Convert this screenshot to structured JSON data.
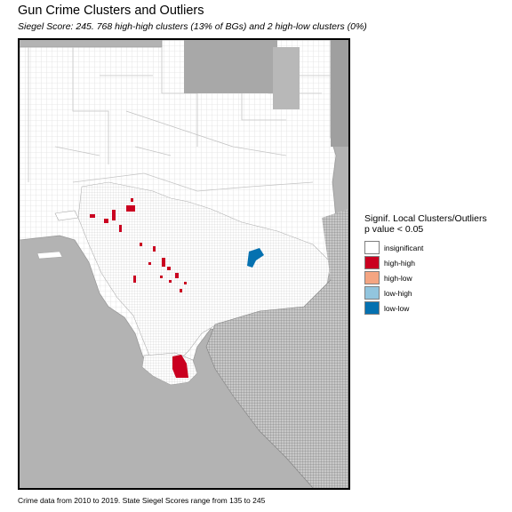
{
  "title": "Gun Crime Clusters and Outliers",
  "subtitle": "Siegel Score: 245. 768 high-high clusters (13% of BGs) and 2 high-low clusters (0%)",
  "legend": {
    "title_line1": "Signif. Local Clusters/Outliers",
    "title_line2": "p value < 0.05",
    "items": [
      {
        "label": "insignificant",
        "color": "#ffffff"
      },
      {
        "label": "high-high",
        "color": "#ca0020"
      },
      {
        "label": "high-low",
        "color": "#f4a582"
      },
      {
        "label": "low-high",
        "color": "#92c5de"
      },
      {
        "label": "low-low",
        "color": "#0571b0"
      }
    ]
  },
  "caption": "Crime data from 2010 to 2019. State Siegel Scores range from 135 to 245",
  "colors": {
    "background_region": "#b3b3b3",
    "ocean": "#b3b3b3",
    "block_group_outline": "#cccccc",
    "dense_urban_outline": "#8c8c8c"
  }
}
